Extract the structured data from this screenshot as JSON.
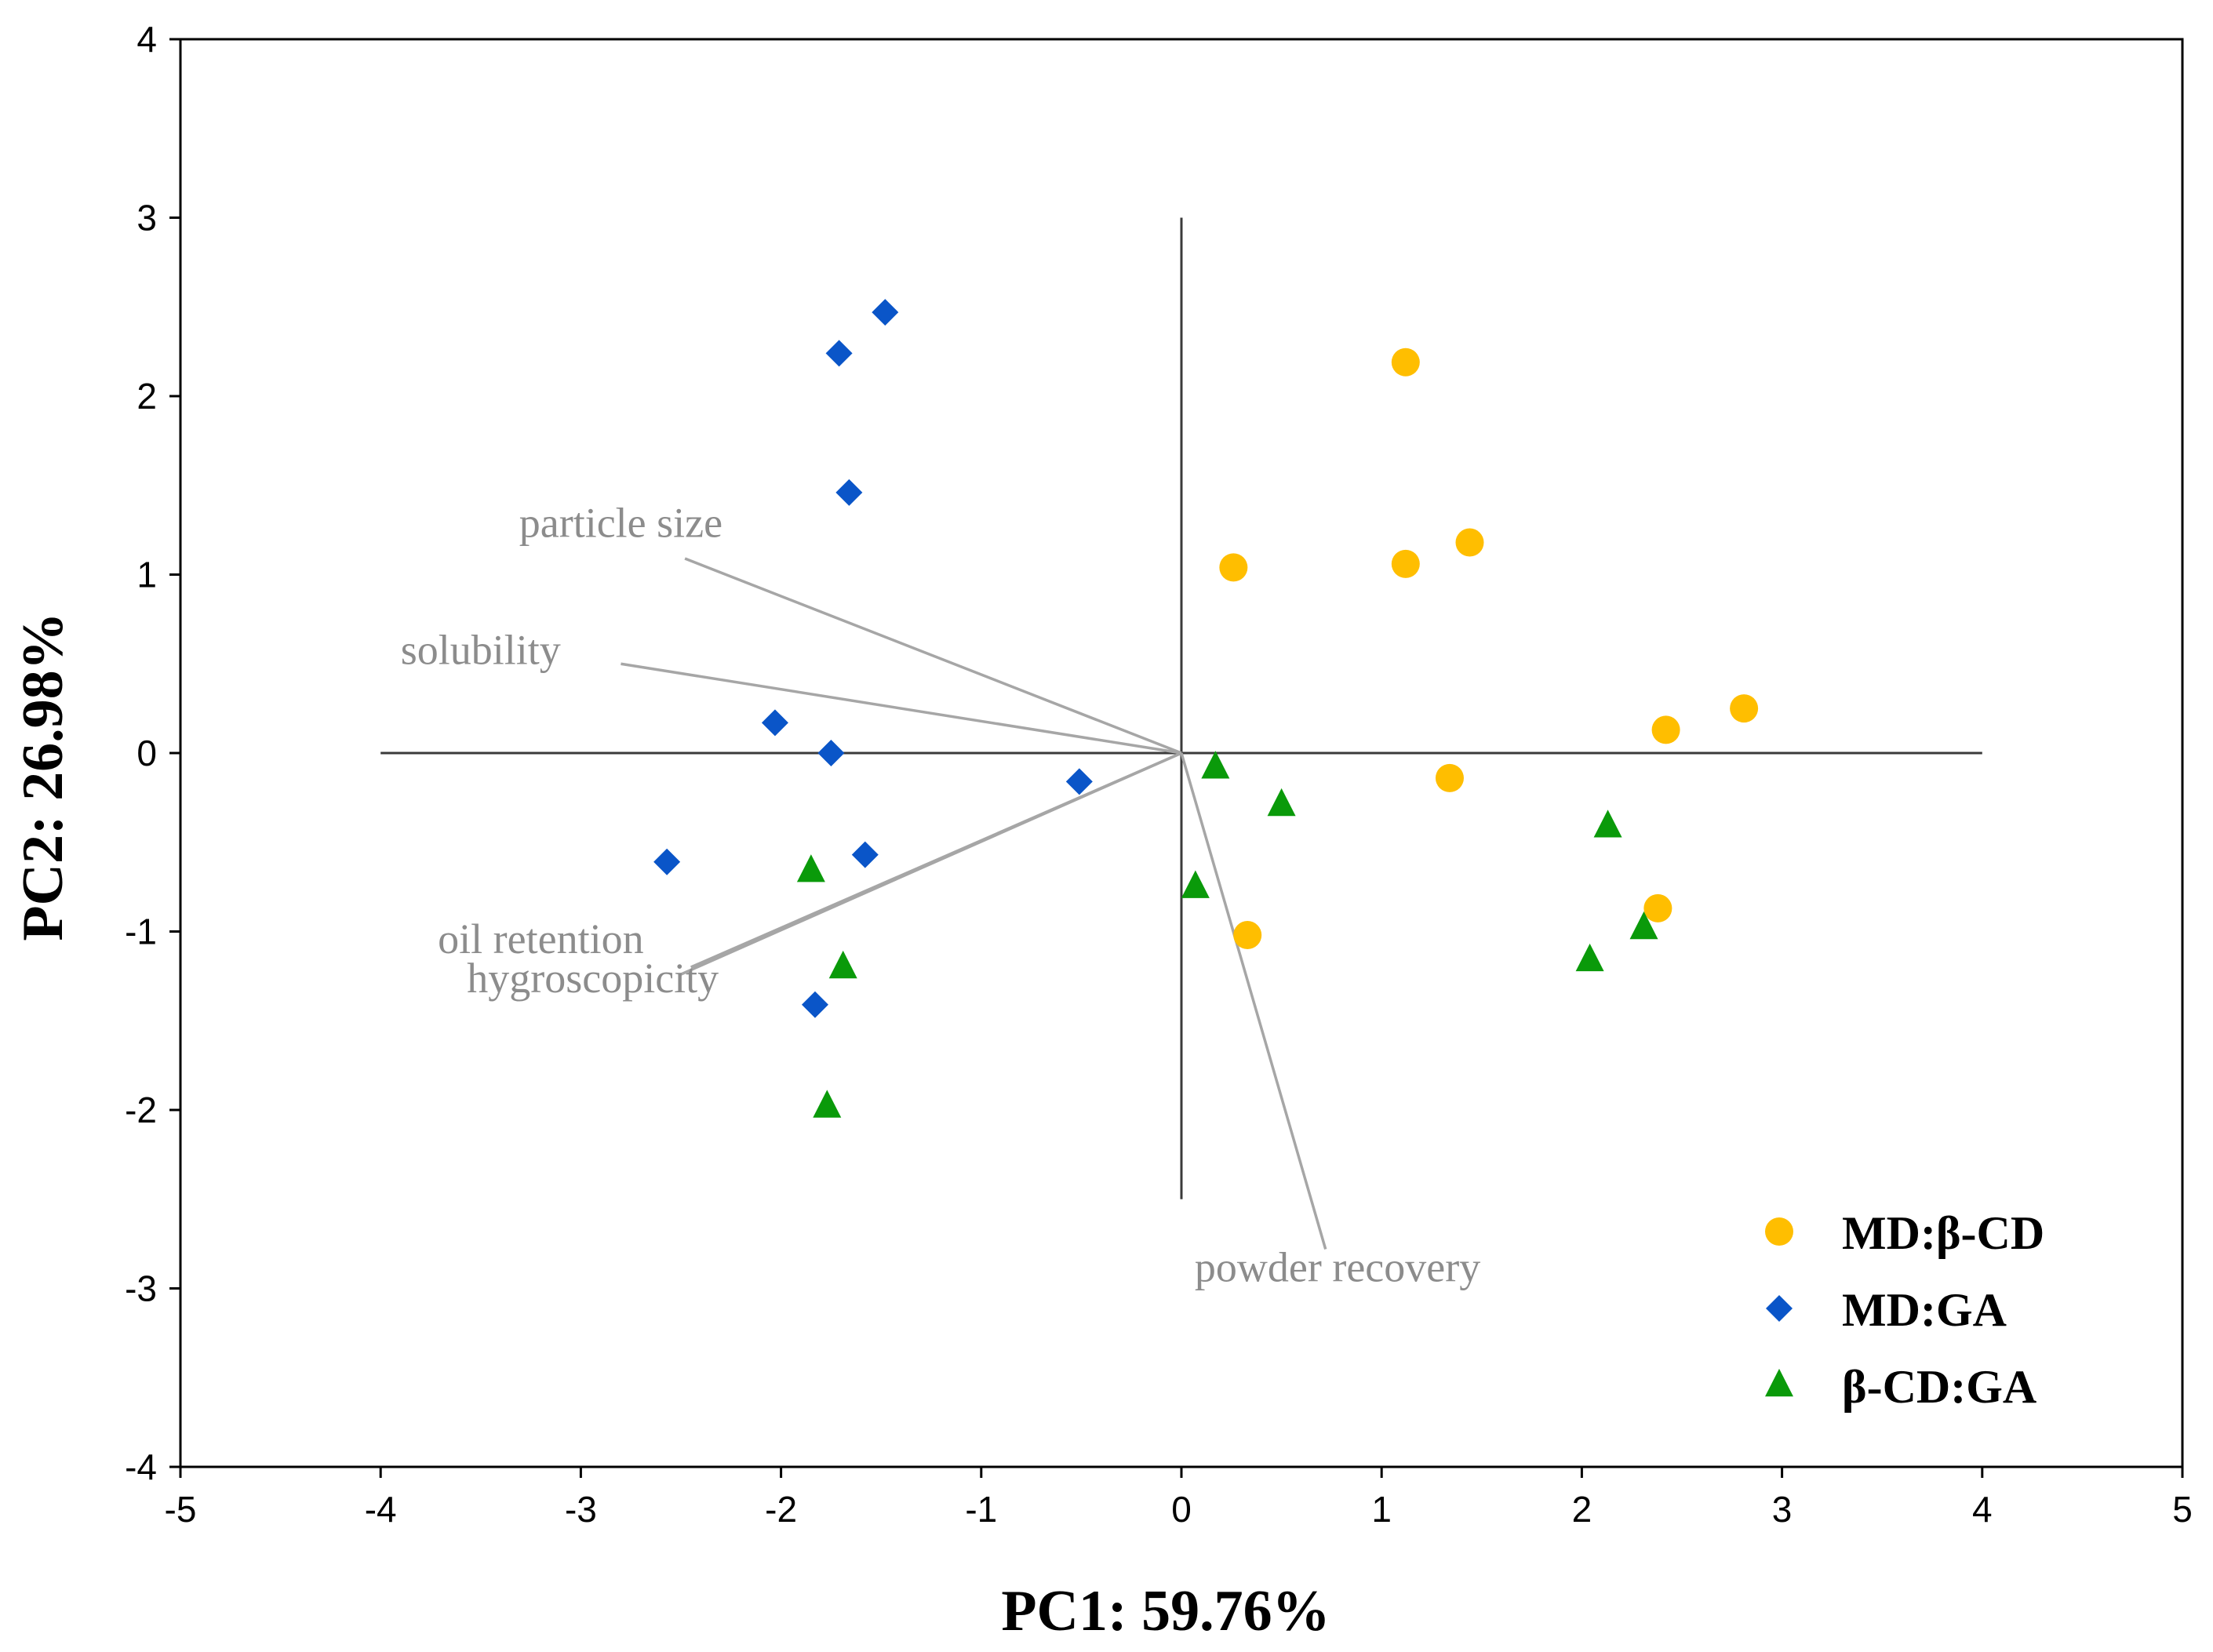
{
  "chart_data": {
    "type": "scatter",
    "title": "",
    "xlabel": "PC1: 59.76%",
    "ylabel": "PC2: 26.98%",
    "xlim": [
      -5,
      5
    ],
    "ylim": [
      -4,
      4
    ],
    "xticks": [
      -5,
      -4,
      -3,
      -2,
      -1,
      0,
      1,
      2,
      3,
      4,
      5
    ],
    "yticks": [
      -4,
      -3,
      -2,
      -1,
      0,
      1,
      2,
      3,
      4
    ],
    "crosshair": {
      "horizontal_x_range": [
        -4,
        4
      ],
      "vertical_y_range": [
        -2.5,
        3
      ]
    },
    "legend_position": "bottom-right",
    "series": [
      {
        "name": "MD:β-CD",
        "marker": "circle",
        "color": "#ffbe00",
        "points": [
          [
            1.12,
            2.19
          ],
          [
            0.26,
            1.04
          ],
          [
            1.12,
            1.06
          ],
          [
            1.44,
            1.18
          ],
          [
            2.81,
            0.25
          ],
          [
            2.42,
            0.13
          ],
          [
            1.34,
            -0.14
          ],
          [
            2.38,
            -0.87
          ],
          [
            0.33,
            -1.02
          ]
        ]
      },
      {
        "name": "MD:GA",
        "marker": "diamond",
        "color": "#0a55c8",
        "points": [
          [
            -1.48,
            2.47
          ],
          [
            -1.71,
            2.24
          ],
          [
            -1.66,
            1.46
          ],
          [
            -2.03,
            0.17
          ],
          [
            -1.75,
            0.0
          ],
          [
            -0.51,
            -0.16
          ],
          [
            -2.57,
            -0.61
          ],
          [
            -1.58,
            -0.57
          ],
          [
            -1.83,
            -1.41
          ]
        ]
      },
      {
        "name": "β-CD:GA",
        "marker": "triangle",
        "color": "#0a9a0a",
        "points": [
          [
            0.17,
            -0.08
          ],
          [
            0.5,
            -0.29
          ],
          [
            0.07,
            -0.75
          ],
          [
            2.13,
            -0.41
          ],
          [
            2.31,
            -0.98
          ],
          [
            2.04,
            -1.16
          ],
          [
            -1.85,
            -0.66
          ],
          [
            -1.69,
            -1.2
          ],
          [
            -1.77,
            -1.98
          ]
        ]
      }
    ],
    "loadings": [
      {
        "name": "particle size",
        "end": [
          -2.48,
          1.09
        ],
        "label_at": [
          -2.8,
          1.21
        ],
        "label_anchor": "middle",
        "leader_from": [
          -2.48,
          1.09
        ],
        "leader_to": [
          -2.48,
          1.09
        ]
      },
      {
        "name": "solubility",
        "end": [
          -2.8,
          0.5
        ],
        "label_at": [
          -3.5,
          0.5
        ],
        "label_anchor": "middle",
        "leader_from": [
          -2.8,
          0.5
        ],
        "leader_to": [
          -2.8,
          0.5
        ]
      },
      {
        "name": "oil retention",
        "end": [
          -2.5,
          -1.24
        ],
        "label_at": [
          -3.2,
          -1.12
        ],
        "label_anchor": "middle",
        "leader_from": [
          -2.5,
          -1.24
        ],
        "leader_to": [
          -2.5,
          -1.24
        ]
      },
      {
        "name": "hygroscopicity",
        "end": [
          -2.45,
          -1.2
        ],
        "label_at": [
          -2.94,
          -1.34
        ],
        "label_anchor": "middle",
        "leader_from": [
          -2.45,
          -1.2
        ],
        "leader_to": [
          -2.45,
          -1.2
        ]
      },
      {
        "name": "powder recovery",
        "end": [
          0.72,
          -2.78
        ],
        "label_at": [
          0.78,
          -2.96
        ],
        "label_anchor": "middle",
        "leader_from": [
          0.72,
          -2.78
        ],
        "leader_to": [
          0.72,
          -2.78
        ]
      }
    ]
  }
}
